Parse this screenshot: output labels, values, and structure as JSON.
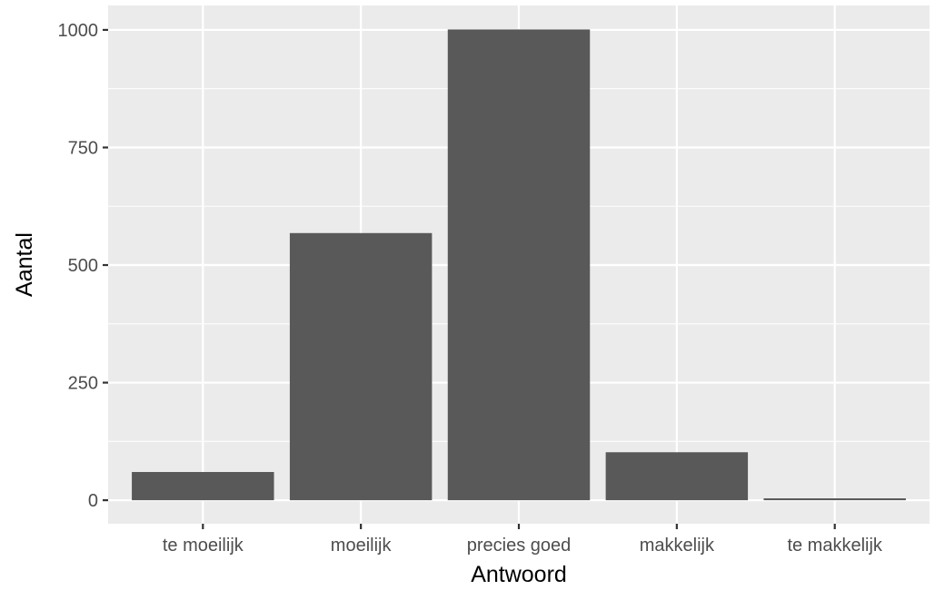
{
  "chart_data": {
    "type": "bar",
    "categories": [
      "te moeilijk",
      "moeilijk",
      "precies goed",
      "makkelijk",
      "te makkelijk"
    ],
    "values": [
      60,
      568,
      1001,
      102,
      4
    ],
    "xlabel": "Antwoord",
    "ylabel": "Aantal",
    "ylim": [
      -50,
      1052
    ],
    "yticks": [
      0,
      250,
      500,
      750,
      1000
    ],
    "ytick_labels": [
      "0",
      "250",
      "500",
      "750",
      "1000"
    ],
    "grid": true,
    "legend": "none",
    "colors": {
      "panel": "#ebebeb",
      "grid": "#ffffff",
      "bar": "#595959",
      "tick_text": "#4d4d4d",
      "title_text": "#000000"
    }
  }
}
